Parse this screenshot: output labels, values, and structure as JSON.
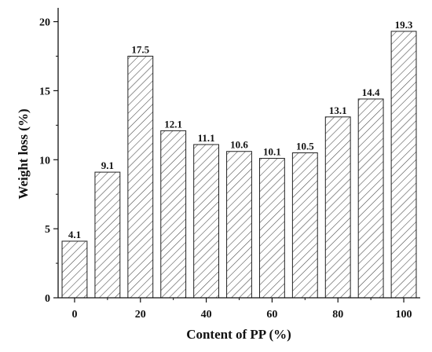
{
  "chart_data": {
    "type": "bar",
    "title": "",
    "xlabel": "Content of PP (%)",
    "ylabel": "Weight loss (%)",
    "x": [
      0,
      10,
      20,
      30,
      40,
      50,
      60,
      70,
      80,
      90,
      100
    ],
    "values": [
      4.1,
      9.1,
      17.5,
      12.1,
      11.1,
      10.6,
      10.1,
      10.5,
      13.1,
      14.4,
      19.3
    ],
    "data_labels": [
      "4.1",
      "9.1",
      "17.5",
      "12.1",
      "11.1",
      "10.6",
      "10.1",
      "10.5",
      "13.1",
      "14.4",
      "19.3"
    ],
    "x_ticks": [
      "0",
      "20",
      "40",
      "60",
      "80",
      "100"
    ],
    "y_ticks": [
      "0",
      "5",
      "10",
      "15",
      "20"
    ],
    "ylim": [
      0,
      21
    ],
    "xlim": [
      -5,
      105
    ],
    "grid": false,
    "legend": false,
    "bar_pattern": "diagonal hatch",
    "colors": {
      "bar_fill": "#ffffff",
      "bar_stroke": "#222222",
      "hatch": "#444444",
      "axis": "#111111",
      "text": "#111111"
    }
  }
}
